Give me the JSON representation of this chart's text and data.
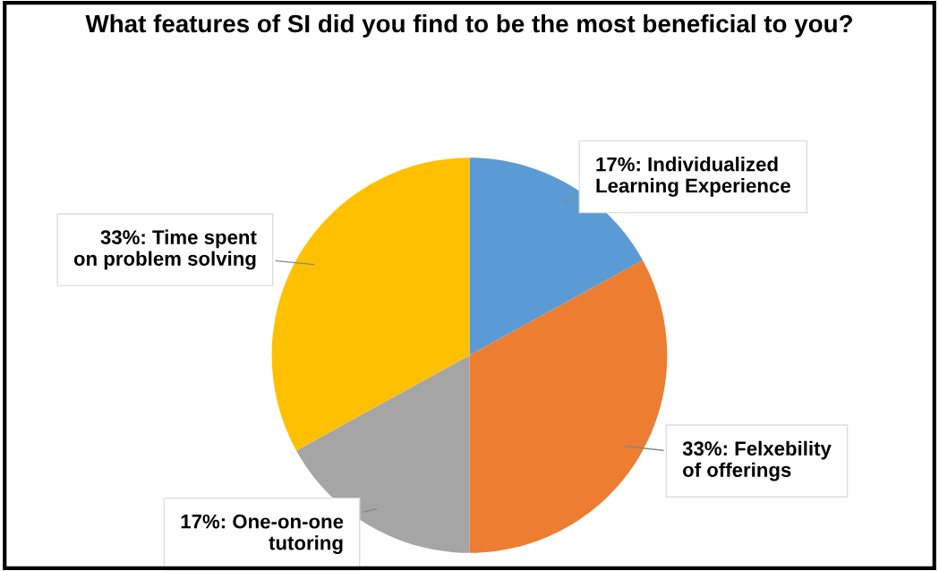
{
  "chart_data": {
    "type": "pie",
    "title": "What features of SI did you find to be the most beneficial to you?",
    "categories": [
      "Individualized Learning Experience",
      "Felxebility of offerings",
      "One-on-one tutoring",
      "Time spent on problem solving"
    ],
    "values": [
      17,
      33,
      17,
      33
    ],
    "value_labels": [
      "17%",
      "33%",
      "17%",
      "33%"
    ],
    "colors": [
      "#5b9bd5",
      "#ed7d31",
      "#a5a5a5",
      "#ffc000"
    ]
  }
}
